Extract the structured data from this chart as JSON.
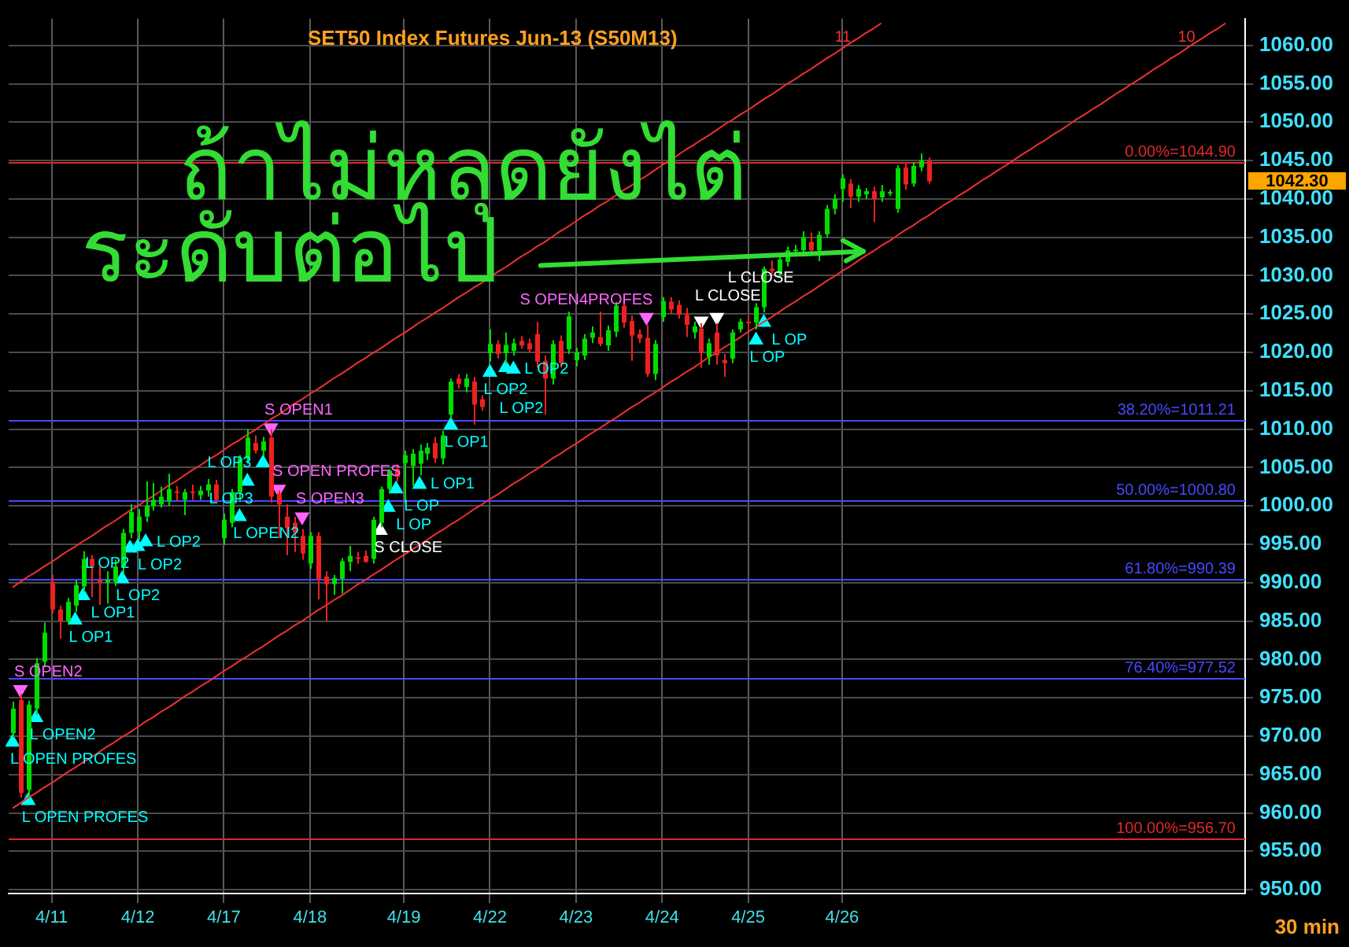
{
  "chart_data": {
    "type": "candlestick",
    "title": "SET50 Index Futures Jun-13 (S50M13)",
    "categories": [
      null,
      null,
      null,
      null,
      null,
      "4/11",
      null,
      null,
      null,
      null,
      null,
      null,
      null,
      null,
      null,
      null,
      "4/12",
      null,
      null,
      null,
      null,
      null,
      null,
      null,
      null,
      null,
      null,
      "4/17",
      null,
      null,
      null,
      null,
      null,
      null,
      null,
      null,
      null,
      null,
      "4/18",
      null,
      null,
      null,
      null,
      null,
      null,
      null,
      null,
      null,
      null,
      null,
      "4/19",
      null,
      null,
      null,
      null,
      null,
      null,
      null,
      null,
      null,
      null,
      "4/22",
      null,
      null,
      null,
      null,
      null,
      null,
      null,
      null,
      null,
      null,
      "4/23",
      null,
      null,
      null,
      null,
      null,
      null,
      null,
      null,
      null,
      null,
      "4/24",
      null,
      null,
      null,
      null,
      null,
      null,
      null,
      null,
      null,
      null,
      "4/25",
      null,
      null,
      null,
      null,
      null,
      null,
      null,
      null,
      null,
      null,
      null,
      "4/26",
      null,
      null,
      null,
      null,
      null,
      null,
      null,
      null,
      null,
      null,
      null,
      null,
      null,
      null,
      null,
      null,
      null,
      null,
      null,
      null,
      null,
      null,
      null,
      null,
      null,
      null,
      null,
      null,
      null,
      null,
      null,
      null,
      null,
      null,
      null,
      null,
      null,
      null,
      null,
      null,
      null,
      null,
      null,
      null,
      null,
      null,
      null,
      null,
      null,
      null,
      null
    ],
    "ohlc": [
      [
        970.4,
        974.5,
        969.8,
        973.6
      ],
      [
        974.7,
        975.5,
        962.0,
        962.6
      ],
      [
        963.0,
        974.6,
        962.2,
        974.1
      ],
      [
        973.6,
        980.2,
        972.8,
        979.5
      ],
      [
        979.7,
        984.8,
        979.0,
        983.5
      ],
      [
        990.1,
        991.0,
        986.0,
        986.5
      ],
      [
        986.5,
        987.0,
        982.7,
        985.0
      ],
      [
        985.0,
        988.0,
        984.5,
        987.5
      ],
      [
        987.0,
        990.3,
        986.2,
        989.7
      ],
      [
        989.5,
        994.1,
        988.8,
        993.1
      ],
      [
        993.1,
        993.6,
        988.1,
        992.1
      ],
      [
        990.3,
        992.1,
        987.1,
        990.0
      ],
      [
        990.0,
        991.5,
        987.3,
        990.4
      ],
      [
        990.1,
        993.0,
        989.6,
        992.1
      ],
      [
        992.1,
        997.0,
        991.2,
        996.5
      ],
      [
        996.5,
        1000.2,
        995.8,
        999.2
      ],
      [
        996.7,
        999.6,
        995.6,
        998.6
      ],
      [
        998.6,
        1003.2,
        997.9,
        1000.0
      ],
      [
        1000.0,
        1003.0,
        999.4,
        1000.8
      ],
      [
        1000.2,
        1002.5,
        999.8,
        1001.2
      ],
      [
        1000.6,
        1004.2,
        1000.0,
        1002.2
      ],
      [
        1001.9,
        1002.6,
        1000.6,
        1001.7
      ],
      [
        1000.8,
        1002.2,
        998.8,
        1001.8
      ],
      [
        1001.9,
        1002.8,
        1000.8,
        1001.7
      ],
      [
        1001.4,
        1002.6,
        1000.8,
        1002.0
      ],
      [
        1002.0,
        1003.5,
        1001.2,
        1002.8
      ],
      [
        1002.8,
        1003.4,
        1000.4,
        1000.8
      ],
      [
        995.8,
        999.0,
        994.9,
        998.2
      ],
      [
        997.8,
        1002.2,
        997.2,
        1001.8
      ],
      [
        1001.8,
        1006.6,
        1000.5,
        1006.2
      ],
      [
        1006.2,
        1010.0,
        1005.5,
        1008.9
      ],
      [
        1008.2,
        1009.2,
        1006.8,
        1007.2
      ],
      [
        1007.2,
        1009.0,
        1006.5,
        1008.4
      ],
      [
        1008.9,
        1010.0,
        1000.4,
        1001.2
      ],
      [
        1001.6,
        1002.0,
        995.8,
        1000.2
      ],
      [
        998.6,
        1000.2,
        993.6,
        997.1
      ],
      [
        997.8,
        998.6,
        994.0,
        996.5
      ],
      [
        996.1,
        997.0,
        993.0,
        993.8
      ],
      [
        992.5,
        996.6,
        991.8,
        996.1
      ],
      [
        996.1,
        996.6,
        987.8,
        990.5
      ],
      [
        990.8,
        991.5,
        985.0,
        989.8
      ],
      [
        989.8,
        991.0,
        988.4,
        990.6
      ],
      [
        990.5,
        993.2,
        988.6,
        992.8
      ],
      [
        992.7,
        994.8,
        991.5,
        993.5
      ],
      [
        993.3,
        994.0,
        992.5,
        993.2
      ],
      [
        993.5,
        994.2,
        992.6,
        992.7
      ],
      [
        993.1,
        998.6,
        992.5,
        998.2
      ],
      [
        997.8,
        1002.5,
        997.2,
        1002.2
      ],
      [
        1002.2,
        1004.8,
        1001.8,
        1004.6
      ],
      [
        1004.8,
        1005.4,
        1003.2,
        1003.8
      ],
      [
        1005.6,
        1007.2,
        1000.4,
        1006.6
      ],
      [
        1005.2,
        1007.4,
        1002.6,
        1006.8
      ],
      [
        1005.5,
        1008.0,
        1004.0,
        1007.2
      ],
      [
        1006.8,
        1008.2,
        1006.0,
        1007.6
      ],
      [
        1008.2,
        1009.0,
        1005.6,
        1006.2
      ],
      [
        1006.2,
        1009.8,
        1005.4,
        1009.2
      ],
      [
        1011.9,
        1016.6,
        1011.4,
        1016.2
      ],
      [
        1016.6,
        1017.2,
        1015.3,
        1015.9
      ],
      [
        1015.5,
        1017.2,
        1014.8,
        1016.6
      ],
      [
        1016.2,
        1016.8,
        1010.6,
        1013.2
      ],
      [
        1013.9,
        1014.4,
        1012.4,
        1012.9
      ],
      [
        1019.9,
        1023.0,
        1018.8,
        1021.1
      ],
      [
        1021.1,
        1021.6,
        1019.2,
        1019.8
      ],
      [
        1019.9,
        1022.6,
        1018.6,
        1021.0
      ],
      [
        1020.2,
        1021.8,
        1019.6,
        1021.2
      ],
      [
        1021.5,
        1022.1,
        1020.5,
        1020.9
      ],
      [
        1021.2,
        1021.8,
        1020.0,
        1020.4
      ],
      [
        1022.4,
        1024.0,
        1018.0,
        1018.8
      ],
      [
        1018.9,
        1019.6,
        1011.9,
        1016.6
      ],
      [
        1016.6,
        1021.6,
        1015.8,
        1021.1
      ],
      [
        1021.5,
        1022.2,
        1018.0,
        1018.6
      ],
      [
        1020.4,
        1025.3,
        1019.8,
        1024.7
      ],
      [
        1019.0,
        1020.6,
        1018.2,
        1020.0
      ],
      [
        1019.6,
        1022.4,
        1019.0,
        1021.8
      ],
      [
        1021.9,
        1023.4,
        1021.2,
        1022.6
      ],
      [
        1022.0,
        1025.3,
        1020.8,
        1021.1
      ],
      [
        1020.9,
        1023.5,
        1020.2,
        1022.9
      ],
      [
        1022.7,
        1026.6,
        1022.0,
        1026.1
      ],
      [
        1026.1,
        1026.9,
        1023.2,
        1023.9
      ],
      [
        1024.1,
        1024.8,
        1018.9,
        1022.2
      ],
      [
        1022.4,
        1023.0,
        1021.2,
        1021.8
      ],
      [
        1021.9,
        1023.6,
        1016.8,
        1017.2
      ],
      [
        1017.2,
        1021.6,
        1016.4,
        1021.1
      ],
      [
        1024.6,
        1027.2,
        1024.0,
        1026.7
      ],
      [
        1026.6,
        1027.2,
        1025.0,
        1025.6
      ],
      [
        1026.2,
        1026.8,
        1024.4,
        1024.9
      ],
      [
        1024.9,
        1025.8,
        1022.0,
        1023.6
      ],
      [
        1022.6,
        1024.0,
        1021.8,
        1023.4
      ],
      [
        1023.1,
        1023.8,
        1018.0,
        1019.9
      ],
      [
        1019.4,
        1021.8,
        1018.4,
        1021.2
      ],
      [
        1022.6,
        1023.8,
        1018.4,
        1019.6
      ],
      [
        1019.0,
        1019.8,
        1016.8,
        1018.6
      ],
      [
        1019.2,
        1023.0,
        1018.6,
        1022.6
      ],
      [
        1023.0,
        1024.4,
        1022.6,
        1024.0
      ],
      [
        1024.0,
        1024.8,
        1023.2,
        1023.8
      ],
      [
        1023.9,
        1026.4,
        1023.0,
        1025.9
      ],
      [
        1025.9,
        1031.2,
        1025.2,
        1030.9
      ],
      [
        1030.9,
        1032.0,
        1030.2,
        1030.6
      ],
      [
        1030.3,
        1032.6,
        1029.8,
        1032.1
      ],
      [
        1031.8,
        1033.8,
        1031.2,
        1033.3
      ],
      [
        1033.2,
        1034.0,
        1032.6,
        1033.4
      ],
      [
        1033.3,
        1035.8,
        1032.8,
        1035.0
      ],
      [
        1034.4,
        1035.6,
        1033.0,
        1033.3
      ],
      [
        1033.3,
        1035.8,
        1031.9,
        1035.3
      ],
      [
        1035.4,
        1039.2,
        1035.0,
        1038.7
      ],
      [
        1038.7,
        1040.6,
        1038.0,
        1040.0
      ],
      [
        1041.3,
        1043.2,
        1039.6,
        1042.7
      ],
      [
        1042.0,
        1042.6,
        1038.8,
        1040.3
      ],
      [
        1040.3,
        1041.8,
        1039.6,
        1041.3
      ],
      [
        1040.6,
        1041.4,
        1040.0,
        1041.0
      ],
      [
        1041.0,
        1041.6,
        1037.0,
        1040.0
      ],
      [
        1040.2,
        1041.8,
        1039.6,
        1041.0
      ],
      [
        1040.8,
        1041.2,
        1040.4,
        1040.9
      ],
      [
        1038.7,
        1044.4,
        1038.2,
        1044.0
      ],
      [
        1044.1,
        1044.6,
        1041.2,
        1041.9
      ],
      [
        1042.0,
        1044.8,
        1041.6,
        1044.3
      ],
      [
        1044.1,
        1045.9,
        1043.6,
        1045.0
      ],
      [
        1045.0,
        1045.4,
        1042.0,
        1042.3
      ],
      null,
      null,
      null,
      null,
      null,
      null,
      null,
      null,
      null,
      null,
      null,
      null,
      null,
      null,
      null,
      null,
      null,
      null,
      null,
      null,
      null,
      null,
      null,
      null,
      null,
      null,
      null,
      null,
      null,
      null,
      null,
      null,
      null,
      null,
      null,
      null,
      null,
      null,
      null,
      null
    ],
    "colors": [
      "#00dd00",
      "#ee2020",
      "#00dd00",
      "#00dd00",
      "#00dd00",
      "#ee2020",
      "#ee2020",
      "#00dd00",
      "#00dd00",
      "#00dd00",
      "#ee2020",
      "#ee2020",
      "#00dd00",
      "#00dd00",
      "#00dd00",
      "#00dd00",
      "#00dd00",
      "#00dd00",
      "#00dd00",
      "#00dd00",
      "#00dd00",
      "#ee2020",
      "#00dd00",
      "#ee2020",
      "#00dd00",
      "#00dd00",
      "#ee2020",
      "#00dd00",
      "#00dd00",
      "#00dd00",
      "#00dd00",
      "#ee2020",
      "#00dd00",
      "#ee2020",
      "#ee2020",
      "#ee2020",
      "#ee2020",
      "#ee2020",
      "#00dd00",
      "#ee2020",
      "#ee2020",
      "#00dd00",
      "#00dd00",
      "#00dd00",
      "#ee2020",
      "#ee2020",
      "#00dd00",
      "#00dd00",
      "#00dd00",
      "#ee2020",
      "#00dd00",
      "#00dd00",
      "#00dd00",
      "#00dd00",
      "#ee2020",
      "#00dd00",
      "#00dd00",
      "#ee2020",
      "#00dd00",
      "#ee2020",
      "#ee2020",
      "#00dd00",
      "#ee2020",
      "#00dd00",
      "#00dd00",
      "#ee2020",
      "#ee2020",
      "#ee2020",
      "#ee2020",
      "#00dd00",
      "#ee2020",
      "#00dd00",
      "#00dd00",
      "#00dd00",
      "#00dd00",
      "#ee2020",
      "#00dd00",
      "#00dd00",
      "#ee2020",
      "#ee2020",
      "#ee2020",
      "#ee2020",
      "#00dd00",
      "#00dd00",
      "#ee2020",
      "#ee2020",
      "#ee2020",
      "#00dd00",
      "#ee2020",
      "#00dd00",
      "#ee2020",
      "#ee2020",
      "#00dd00",
      "#00dd00",
      "#ee2020",
      "#00dd00",
      "#00dd00",
      "#ee2020",
      "#00dd00",
      "#00dd00",
      "#00dd00",
      "#00dd00",
      "#ee2020",
      "#00dd00",
      "#00dd00",
      "#00dd00",
      "#00dd00",
      "#ee2020",
      "#00dd00",
      "#00dd00",
      "#ee2020",
      "#00dd00",
      "#00dd00",
      "#00dd00",
      "#ee2020",
      "#00dd00",
      "#00dd00",
      "#ee2020",
      null,
      null,
      null,
      null,
      null,
      null,
      null,
      null,
      null,
      null,
      null,
      null,
      null,
      null,
      null,
      null,
      null,
      null,
      null,
      null,
      null,
      null,
      null,
      null,
      null,
      null,
      null,
      null,
      null,
      null,
      null,
      null,
      null,
      null,
      null,
      null,
      null,
      null,
      null,
      null
    ],
    "series": [
      {
        "type": "line",
        "name": "11",
        "color": "#f03030",
        "values": [
          989.4,
          990.1,
          990.8,
          991.4,
          992.1,
          992.7,
          993.4,
          994.1,
          994.7,
          995.4,
          996.0,
          996.7,
          997.4,
          998.0,
          998.7,
          999.4,
          1000.0,
          1000.7,
          1001.3,
          1002.0,
          1002.7,
          1003.3,
          1004.0,
          1004.7,
          1005.3,
          1006.0,
          1006.6,
          1007.3,
          1008.0,
          1008.6,
          1009.3,
          1009.9,
          1010.6,
          1011.3,
          1011.9,
          1012.6,
          1013.3,
          1013.9,
          1014.6,
          1015.2,
          1015.9,
          1016.6,
          1017.2,
          1017.9,
          1018.6,
          1019.2,
          1019.9,
          1020.5,
          1021.2,
          1021.9,
          1022.5,
          1023.2,
          1023.9,
          1024.5,
          1025.2,
          1025.8,
          1026.5,
          1027.2,
          1027.8,
          1028.5,
          1029.1,
          1029.8,
          1030.5,
          1031.1,
          1031.8,
          1032.5,
          1033.1,
          1033.8,
          1034.4,
          1035.1,
          1035.8,
          1036.4,
          1037.1,
          1037.8,
          1038.4,
          1039.1,
          1039.7,
          1040.4,
          1041.1,
          1041.7,
          1042.4,
          1043.0,
          1043.7,
          1044.4,
          1045.0,
          1045.7,
          1046.4,
          1047.0,
          1047.7,
          1048.3,
          1049.0,
          1049.7,
          1050.3,
          1051.0,
          1051.6,
          1052.3,
          1053.0,
          1053.6,
          1054.3,
          1055.0,
          1055.6,
          1056.3,
          1056.9,
          1057.6,
          1058.3,
          1058.9,
          1059.6,
          1060.3,
          1060.9,
          1061.6,
          1062.2,
          1062.9,
          null,
          null,
          null,
          null,
          null,
          null,
          null,
          null,
          null,
          null,
          null,
          null,
          null,
          null,
          null,
          null,
          null,
          null,
          null,
          null,
          null,
          null,
          null,
          null,
          null,
          null,
          null,
          null,
          null,
          null,
          null,
          null,
          null,
          null,
          null,
          null,
          null,
          null,
          null,
          null,
          null,
          null,
          null,
          null,
          null,
          null
        ]
      },
      {
        "type": "line",
        "name": "10",
        "color": "#f03030",
        "values": [
          960.6,
          961.3,
          962.0,
          962.6,
          963.3,
          963.9,
          964.6,
          965.3,
          965.9,
          966.6,
          967.2,
          967.9,
          968.6,
          969.2,
          969.9,
          970.5,
          971.2,
          971.9,
          972.5,
          973.2,
          973.8,
          974.5,
          975.2,
          975.8,
          976.5,
          977.1,
          977.8,
          978.5,
          979.1,
          979.8,
          980.4,
          981.1,
          981.7,
          982.4,
          983.1,
          983.7,
          984.4,
          985.0,
          985.7,
          986.4,
          987.0,
          987.7,
          988.3,
          989.0,
          989.7,
          990.3,
          991.0,
          991.6,
          992.3,
          993.0,
          993.6,
          994.3,
          994.9,
          995.6,
          996.3,
          996.9,
          997.6,
          998.2,
          998.9,
          999.6,
          1000.2,
          1000.9,
          1001.5,
          1002.2,
          1002.9,
          1003.5,
          1004.2,
          1004.8,
          1005.5,
          1006.2,
          1006.8,
          1007.5,
          1008.1,
          1008.8,
          1009.5,
          1010.1,
          1010.8,
          1011.4,
          1012.1,
          1012.8,
          1013.4,
          1014.1,
          1014.7,
          1015.4,
          1016.1,
          1016.7,
          1017.4,
          1018.0,
          1018.7,
          1019.4,
          1020.0,
          1020.7,
          1021.3,
          1022.0,
          1022.7,
          1023.3,
          1024.0,
          1024.6,
          1025.3,
          1026.0,
          1026.6,
          1027.3,
          1027.9,
          1028.6,
          1029.3,
          1029.9,
          1030.6,
          1031.2,
          1031.9,
          1032.6,
          1033.2,
          1033.9,
          1034.5,
          1035.2,
          1035.9,
          1036.5,
          1037.2,
          1037.8,
          1038.5,
          1039.2,
          1039.8,
          1040.5,
          1041.1,
          1041.8,
          1042.5,
          1043.1,
          1043.8,
          1044.4,
          1045.1,
          1045.8,
          1046.4,
          1047.1,
          1047.7,
          1048.4,
          1049.0,
          1049.7,
          1050.4,
          1051.0,
          1051.7,
          1052.3,
          1053.0,
          1053.7,
          1054.3,
          1055.0,
          1055.6,
          1056.3,
          1057.0,
          1057.6,
          1058.3,
          1058.9,
          1059.6,
          1060.3,
          1060.9,
          1061.6,
          1062.2,
          1062.9,
          null,
          null
        ]
      },
      {
        "type": "scatter",
        "color": "#00ffff",
        "marker": "triangle",
        "values": [
          969.2,
          null,
          961.6,
          972.4,
          null,
          null,
          null,
          null,
          985.1,
          988.3,
          null,
          null,
          null,
          null,
          990.5,
          994.5,
          994.7,
          995.3,
          null,
          null,
          null,
          null,
          null,
          null,
          null,
          null,
          null,
          null,
          null,
          998.6,
          1003.2,
          null,
          1005.6,
          null,
          null,
          null,
          null,
          null,
          null,
          null,
          null,
          null,
          null,
          null,
          null,
          null,
          null,
          null,
          999.8,
          1002.2,
          null,
          null,
          1002.8,
          null,
          null,
          null,
          1010.5,
          null,
          null,
          null,
          null,
          1017.4,
          null,
          1018.0,
          1017.8,
          null,
          null,
          null,
          null,
          null,
          null,
          null,
          null,
          null,
          null,
          null,
          null,
          null,
          null,
          null,
          null,
          null,
          null,
          null,
          null,
          null,
          null,
          null,
          null,
          null,
          null,
          null,
          null,
          null,
          null,
          1021.6,
          1023.9,
          null,
          null,
          null,
          null,
          null,
          null,
          null,
          null,
          null,
          null,
          null,
          null,
          null,
          null,
          null,
          null,
          null,
          null,
          null,
          null,
          null,
          null,
          null,
          null,
          null,
          null,
          null,
          null,
          null,
          null,
          null,
          null,
          null,
          null,
          null,
          null,
          null,
          null,
          null,
          null,
          null,
          null,
          null,
          null,
          null,
          null,
          null,
          null,
          null,
          null,
          null,
          null,
          null,
          null,
          null,
          null,
          null,
          null,
          null,
          null,
          null
        ],
        "value_labels": [
          "L OPEN PROFES",
          null,
          "L OPEN PROFES",
          "L OPEN2",
          null,
          null,
          null,
          null,
          "L OP1",
          "L OP1",
          null,
          null,
          null,
          null,
          "L OP2",
          "L OP2",
          "L OP2",
          "L OP2",
          null,
          null,
          null,
          null,
          null,
          null,
          null,
          null,
          null,
          null,
          null,
          "L OPEN2",
          "L OP3",
          null,
          "L OP3",
          null,
          null,
          null,
          null,
          null,
          null,
          null,
          null,
          null,
          null,
          null,
          null,
          null,
          null,
          null,
          "L OP",
          "L OP",
          null,
          null,
          "L OP1",
          null,
          null,
          null,
          "L OP1",
          null,
          null,
          null,
          null,
          "L OP2",
          null,
          "L OP2",
          "L OP2",
          null,
          null,
          null,
          null,
          null,
          null,
          null,
          null,
          null,
          null,
          null,
          null,
          null,
          null,
          null,
          null,
          null,
          null,
          null,
          null,
          null,
          null,
          null,
          null,
          null,
          null,
          null,
          null,
          null,
          null,
          "L OP",
          "L OP",
          null,
          null,
          null,
          null,
          null,
          null,
          null,
          null,
          null,
          null,
          null,
          null,
          null,
          null,
          null,
          null,
          null,
          null,
          null,
          null,
          null,
          null,
          null,
          null,
          null,
          null,
          null,
          null,
          null,
          null,
          null,
          null,
          null,
          null,
          null,
          null,
          null,
          null,
          null,
          null,
          null,
          null,
          null,
          null,
          null,
          null,
          null,
          null,
          null,
          null,
          null,
          null,
          null,
          null,
          null,
          null,
          null,
          null,
          null,
          null,
          null
        ]
      },
      {
        "type": "scatter",
        "color": "#ff66ff",
        "marker": "triangle",
        "values": [
          null,
          976.1,
          null,
          null,
          null,
          null,
          null,
          null,
          null,
          null,
          null,
          null,
          null,
          null,
          null,
          null,
          null,
          null,
          null,
          null,
          null,
          null,
          null,
          null,
          null,
          null,
          null,
          null,
          null,
          null,
          null,
          null,
          null,
          1010.2,
          1002.2,
          null,
          null,
          998.6,
          null,
          null,
          null,
          null,
          null,
          null,
          null,
          null,
          null,
          null,
          null,
          null,
          null,
          null,
          null,
          null,
          null,
          null,
          null,
          null,
          null,
          null,
          null,
          null,
          null,
          null,
          null,
          null,
          null,
          null,
          null,
          null,
          null,
          null,
          null,
          null,
          null,
          null,
          null,
          null,
          null,
          null,
          null,
          1024.6,
          null,
          null,
          null,
          null,
          null,
          null,
          null,
          null,
          null,
          null,
          null,
          null,
          null,
          null,
          null,
          null,
          null,
          null,
          null,
          null,
          null,
          null,
          null,
          null,
          null,
          null,
          null,
          null,
          null,
          null,
          null,
          null,
          null,
          null,
          null,
          null,
          null,
          null,
          null,
          null,
          null,
          null,
          null,
          null,
          null,
          null,
          null,
          null,
          null,
          null,
          null,
          null,
          null,
          null,
          null,
          null,
          null,
          null,
          null,
          null,
          null,
          null,
          null,
          null,
          null,
          null,
          null,
          null,
          null,
          null,
          null,
          null,
          null,
          null,
          null,
          null
        ],
        "value_labels": [
          null,
          "S OPEN2",
          null,
          null,
          null,
          null,
          null,
          null,
          null,
          null,
          null,
          null,
          null,
          null,
          null,
          null,
          null,
          null,
          null,
          null,
          null,
          null,
          null,
          null,
          null,
          null,
          null,
          null,
          null,
          null,
          null,
          null,
          null,
          "S OPEN1",
          "S OPEN PROFES",
          null,
          null,
          "S OPEN3",
          null,
          null,
          null,
          null,
          null,
          null,
          null,
          null,
          null,
          null,
          null,
          null,
          null,
          null,
          null,
          null,
          null,
          null,
          null,
          null,
          null,
          null,
          null,
          null,
          null,
          null,
          null,
          null,
          null,
          null,
          null,
          null,
          null,
          null,
          null,
          null,
          null,
          null,
          null,
          null,
          null,
          null,
          null,
          "S OPEN4PROFES",
          null,
          null,
          null,
          null,
          null,
          null,
          null,
          null,
          null,
          null,
          null,
          null,
          null,
          null,
          null,
          null,
          null,
          null,
          null,
          null,
          null,
          null,
          null,
          null,
          null,
          null,
          null,
          null,
          null,
          null,
          null,
          null,
          null,
          null,
          null,
          null,
          null,
          null,
          null,
          null,
          null,
          null,
          null,
          null,
          null,
          null,
          null,
          null,
          null,
          null,
          null,
          null,
          null,
          null,
          null,
          null,
          null,
          null,
          null,
          null,
          null,
          null,
          null,
          null,
          null,
          null,
          null,
          null,
          null,
          null,
          null,
          null,
          null,
          null,
          null,
          null
        ]
      },
      {
        "type": "scatter",
        "color": "#ffffff",
        "marker": "triangle",
        "values": [
          null,
          null,
          null,
          null,
          null,
          null,
          null,
          null,
          null,
          null,
          null,
          null,
          null,
          null,
          null,
          null,
          null,
          null,
          null,
          null,
          null,
          null,
          null,
          null,
          null,
          null,
          null,
          null,
          null,
          null,
          null,
          null,
          null,
          null,
          null,
          null,
          null,
          null,
          null,
          null,
          null,
          null,
          null,
          null,
          null,
          null,
          null,
          996.8,
          null,
          null,
          null,
          null,
          null,
          null,
          null,
          null,
          null,
          null,
          null,
          null,
          null,
          null,
          null,
          null,
          null,
          null,
          null,
          null,
          null,
          null,
          null,
          null,
          null,
          null,
          null,
          null,
          null,
          null,
          null,
          null,
          null,
          null,
          null,
          null,
          null,
          null,
          null,
          null,
          1024.1,
          null,
          1024.6,
          null,
          null,
          null,
          null,
          null,
          null,
          null,
          null,
          null,
          null,
          null,
          null,
          null,
          null,
          null,
          null,
          null,
          null,
          null,
          null,
          null,
          null,
          null,
          null,
          null,
          null,
          null,
          null,
          null,
          null,
          null,
          null,
          null,
          null,
          null,
          null,
          null,
          null,
          null,
          null,
          null,
          null,
          null,
          null,
          null,
          null,
          null,
          null,
          null,
          null,
          null,
          null,
          null,
          null,
          null,
          null,
          null,
          null,
          null,
          null,
          null,
          null,
          null,
          null,
          null,
          null,
          null
        ],
        "value_labels": [
          null,
          null,
          null,
          null,
          null,
          null,
          null,
          null,
          null,
          null,
          null,
          null,
          null,
          null,
          null,
          null,
          null,
          null,
          null,
          null,
          null,
          null,
          null,
          null,
          null,
          null,
          null,
          null,
          null,
          null,
          null,
          null,
          null,
          null,
          null,
          null,
          null,
          null,
          null,
          null,
          null,
          null,
          null,
          null,
          null,
          null,
          null,
          "S CLOSE",
          null,
          null,
          null,
          null,
          null,
          null,
          null,
          null,
          null,
          null,
          null,
          null,
          null,
          null,
          null,
          null,
          null,
          null,
          null,
          null,
          null,
          null,
          null,
          null,
          null,
          null,
          null,
          null,
          null,
          null,
          null,
          null,
          null,
          null,
          null,
          null,
          null,
          null,
          null,
          null,
          "L CLOSE",
          null,
          "L CLOSE",
          null,
          null,
          null,
          null,
          null,
          null,
          null,
          null,
          null,
          null,
          null,
          null,
          null,
          null,
          null,
          null,
          null,
          null,
          null,
          null,
          null,
          null,
          null,
          null,
          null,
          null,
          null,
          null,
          null,
          null,
          null,
          null,
          null,
          null,
          null,
          null,
          null,
          null,
          null,
          null,
          null,
          null,
          null,
          null,
          null,
          null,
          null,
          null,
          null,
          null,
          null,
          null,
          null,
          null,
          null,
          null,
          null,
          null,
          null,
          null,
          null,
          null,
          null,
          null,
          null,
          null,
          null
        ]
      }
    ],
    "ylim": [
      949.5,
      1063.5
    ],
    "yticks": [
      {
        "value": 950,
        "label": "950.00"
      },
      {
        "value": 955,
        "label": "955.00"
      },
      {
        "value": 960,
        "label": "960.00"
      },
      {
        "value": 965,
        "label": "965.00"
      },
      {
        "value": 970,
        "label": "970.00"
      },
      {
        "value": 975,
        "label": "975.00"
      },
      {
        "value": 980,
        "label": "980.00"
      },
      {
        "value": 985,
        "label": "985.00"
      },
      {
        "value": 990,
        "label": "990.00"
      },
      {
        "value": 995,
        "label": "995.00"
      },
      {
        "value": 1000,
        "label": "1000.00"
      },
      {
        "value": 1005,
        "label": "1005.00"
      },
      {
        "value": 1010,
        "label": "1010.00"
      },
      {
        "value": 1015,
        "label": "1015.00"
      },
      {
        "value": 1020,
        "label": "1020.00"
      },
      {
        "value": 1025,
        "label": "1025.00"
      },
      {
        "value": 1030,
        "label": "1030.00"
      },
      {
        "value": 1035,
        "label": "1035.00"
      },
      {
        "value": 1040,
        "label": "1040.00"
      },
      {
        "value": 1045,
        "label": "1045.00"
      },
      {
        "value": 1050,
        "label": "1050.00"
      },
      {
        "value": 1055,
        "label": "1055.00"
      },
      {
        "value": 1060,
        "label": "1060.00"
      }
    ],
    "ref_lines": [
      {
        "axis": "y",
        "value": 1044.9,
        "label": "0.00%=1044.90",
        "color": "#e02828"
      },
      {
        "axis": "y",
        "value": 1011.21,
        "label": "38.20%=1011.21",
        "color": "#4848ff"
      },
      {
        "axis": "y",
        "value": 1000.8,
        "label": "50.00%=1000.80",
        "color": "#4848ff"
      },
      {
        "axis": "y",
        "value": 990.39,
        "label": "61.80%=990.39",
        "color": "#4848ff"
      },
      {
        "axis": "y",
        "value": 977.52,
        "label": "76.40%=977.52",
        "color": "#4848ff"
      },
      {
        "axis": "y",
        "value": 956.7,
        "label": "100.00%=956.70",
        "color": "#e02828"
      }
    ],
    "annotations": [
      "ถ้าไม่หลุดยังไต่",
      "ระดับต่อไป",
      "1042.30",
      "30 min"
    ],
    "grid": true
  }
}
